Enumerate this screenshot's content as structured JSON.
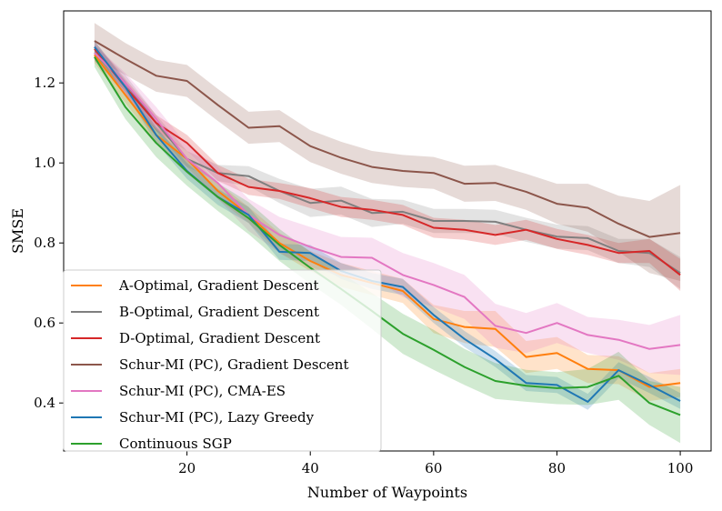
{
  "chart_data": {
    "type": "line",
    "title": "",
    "xlabel": "Number of Waypoints",
    "ylabel": "SMSE",
    "xlim": [
      0,
      105
    ],
    "ylim": [
      0.28,
      1.38
    ],
    "x_ticks": [
      20,
      40,
      60,
      80,
      100
    ],
    "y_ticks": [
      0.4,
      0.6,
      0.8,
      1.0,
      1.2
    ],
    "x_tick_labels": [
      "20",
      "40",
      "60",
      "80",
      "100"
    ],
    "y_tick_labels": [
      "0.4",
      "0.6",
      "0.8",
      "1.0",
      "1.2"
    ],
    "x": [
      5,
      10,
      15,
      20,
      25,
      30,
      35,
      40,
      45,
      50,
      55,
      60,
      65,
      70,
      75,
      80,
      85,
      90,
      95,
      100
    ],
    "legend_position": "lower-left",
    "series": [
      {
        "name": "A-Optimal, Gradient Descent",
        "color": "#ff7f0e",
        "values": [
          1.27,
          1.17,
          1.07,
          1.01,
          0.93,
          0.87,
          0.8,
          0.755,
          0.72,
          0.7,
          0.68,
          0.61,
          0.59,
          0.585,
          0.515,
          0.525,
          0.485,
          0.482,
          0.44,
          0.45
        ],
        "band": [
          0.02,
          0.02,
          0.02,
          0.02,
          0.02,
          0.02,
          0.025,
          0.025,
          0.03,
          0.03,
          0.03,
          0.035,
          0.04,
          0.045,
          0.04,
          0.04,
          0.035,
          0.035,
          0.035,
          0.035
        ]
      },
      {
        "name": "B-Optimal, Gradient Descent",
        "color": "#7f7f7f",
        "values": [
          1.275,
          1.2,
          1.1,
          1.01,
          0.975,
          0.967,
          0.93,
          0.9,
          0.906,
          0.875,
          0.878,
          0.855,
          0.855,
          0.853,
          0.833,
          0.816,
          0.812,
          0.78,
          0.775,
          0.725
        ],
        "band": [
          0.02,
          0.02,
          0.02,
          0.02,
          0.02,
          0.025,
          0.03,
          0.035,
          0.035,
          0.035,
          0.03,
          0.03,
          0.03,
          0.03,
          0.03,
          0.03,
          0.03,
          0.03,
          0.035,
          0.04
        ]
      },
      {
        "name": "D-Optimal, Gradient Descent",
        "color": "#d62728",
        "values": [
          1.285,
          1.19,
          1.1,
          1.05,
          0.975,
          0.94,
          0.93,
          0.912,
          0.89,
          0.883,
          0.87,
          0.838,
          0.833,
          0.82,
          0.833,
          0.81,
          0.795,
          0.775,
          0.78,
          0.72
        ],
        "band": [
          0.02,
          0.02,
          0.02,
          0.02,
          0.02,
          0.02,
          0.02,
          0.025,
          0.025,
          0.025,
          0.025,
          0.025,
          0.025,
          0.025,
          0.025,
          0.025,
          0.025,
          0.025,
          0.03,
          0.04
        ]
      },
      {
        "name": "Schur-MI (PC), Gradient Descent",
        "color": "#8c564b",
        "values": [
          1.305,
          1.26,
          1.218,
          1.205,
          1.145,
          1.088,
          1.092,
          1.042,
          1.013,
          0.99,
          0.98,
          0.975,
          0.948,
          0.95,
          0.928,
          0.898,
          0.888,
          0.848,
          0.815,
          0.825
        ],
        "band": [
          0.045,
          0.04,
          0.04,
          0.04,
          0.04,
          0.04,
          0.04,
          0.04,
          0.04,
          0.04,
          0.04,
          0.04,
          0.045,
          0.045,
          0.045,
          0.05,
          0.06,
          0.07,
          0.09,
          0.12
        ]
      },
      {
        "name": "Schur-MI (PC), CMA-ES",
        "color": "#e377c2",
        "values": [
          1.275,
          1.2,
          1.11,
          1.01,
          0.95,
          0.87,
          0.82,
          0.79,
          0.765,
          0.763,
          0.72,
          0.695,
          0.665,
          0.593,
          0.575,
          0.6,
          0.57,
          0.558,
          0.535,
          0.545
        ],
        "band": [
          0.02,
          0.025,
          0.03,
          0.035,
          0.04,
          0.04,
          0.045,
          0.05,
          0.05,
          0.05,
          0.055,
          0.055,
          0.055,
          0.055,
          0.05,
          0.05,
          0.045,
          0.05,
          0.06,
          0.075
        ]
      },
      {
        "name": "Schur-MI (PC), Lazy Greedy",
        "color": "#1f77b4",
        "values": [
          1.29,
          1.19,
          1.07,
          0.98,
          0.915,
          0.87,
          0.778,
          0.775,
          0.73,
          0.705,
          0.69,
          0.62,
          0.56,
          0.51,
          0.45,
          0.445,
          0.403,
          0.482,
          0.445,
          0.405
        ],
        "band": [
          0.015,
          0.015,
          0.02,
          0.02,
          0.02,
          0.02,
          0.02,
          0.02,
          0.02,
          0.02,
          0.02,
          0.02,
          0.02,
          0.02,
          0.02,
          0.02,
          0.02,
          0.02,
          0.02,
          0.02
        ]
      },
      {
        "name": "Continuous SGP",
        "color": "#2ca02c",
        "values": [
          1.265,
          1.14,
          1.05,
          0.978,
          0.915,
          0.862,
          0.795,
          0.738,
          0.685,
          0.63,
          0.573,
          0.533,
          0.49,
          0.455,
          0.443,
          0.437,
          0.44,
          0.468,
          0.4,
          0.37
        ],
        "band": [
          0.025,
          0.03,
          0.035,
          0.035,
          0.035,
          0.04,
          0.04,
          0.04,
          0.04,
          0.045,
          0.05,
          0.05,
          0.045,
          0.045,
          0.04,
          0.04,
          0.045,
          0.06,
          0.055,
          0.07
        ]
      }
    ]
  }
}
